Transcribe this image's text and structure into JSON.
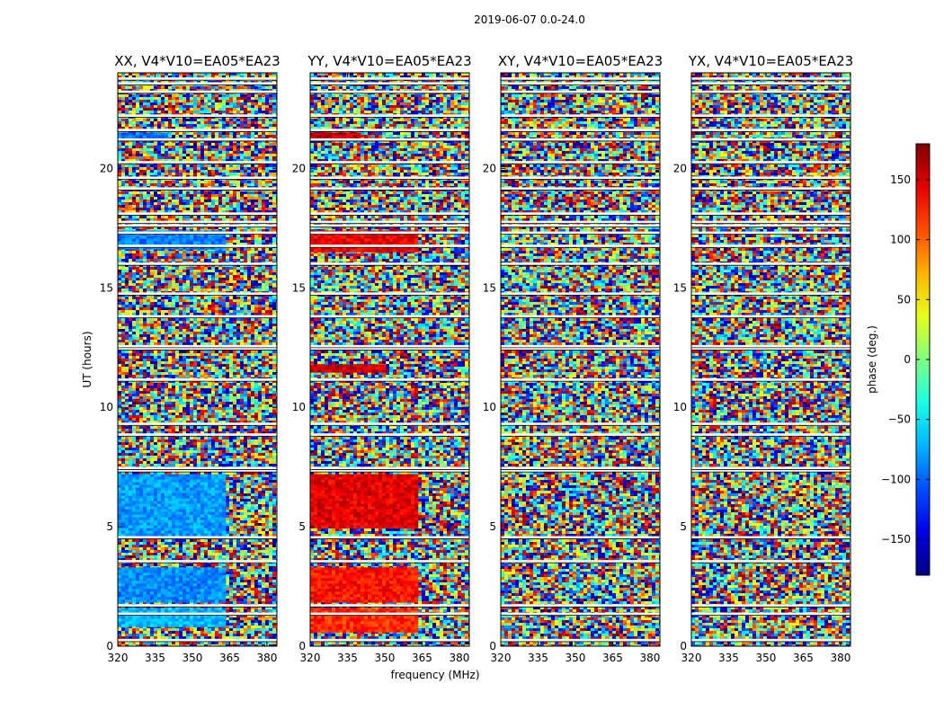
{
  "chart_data": {
    "type": "heatmap",
    "suptitle": "2019-06-07 0.0-24.0",
    "xlabel": "frequency (MHz)",
    "ylabel": "UT (hours)",
    "xlim": [
      320,
      384
    ],
    "ylim": [
      0,
      24
    ],
    "xticks": [
      320,
      335,
      350,
      365,
      380
    ],
    "yticks": [
      0,
      5,
      10,
      15,
      20
    ],
    "split_freq_mhz": 361,
    "panels": [
      {
        "title": "XX, V4*V10=EA05*EA23",
        "bands": [
          {
            "t0": 0.9,
            "t1": 1.6,
            "phase": -70,
            "f1": 362
          },
          {
            "t0": 1.9,
            "t1": 3.3,
            "phase": -85,
            "f1": 362
          },
          {
            "t0": 4.7,
            "t1": 7.2,
            "phase": -80,
            "f1": 362
          },
          {
            "t0": 16.7,
            "t1": 17.4,
            "phase": -90,
            "f1": 362
          },
          {
            "t0": 21.2,
            "t1": 21.5,
            "phase": -95,
            "f1": 340
          }
        ]
      },
      {
        "title": "YY, V4*V10=EA05*EA23",
        "bands": [
          {
            "t0": 0.6,
            "t1": 1.6,
            "phase": 120,
            "f1": 362
          },
          {
            "t0": 1.9,
            "t1": 3.3,
            "phase": 130,
            "f1": 362
          },
          {
            "t0": 5.0,
            "t1": 7.2,
            "phase": 145,
            "f1": 362
          },
          {
            "t0": 16.6,
            "t1": 17.4,
            "phase": 140,
            "f1": 362
          },
          {
            "t0": 11.5,
            "t1": 11.8,
            "phase": 150,
            "f1": 350
          },
          {
            "t0": 21.2,
            "t1": 21.5,
            "phase": 155,
            "f1": 340
          }
        ]
      },
      {
        "title": "XY, V4*V10=EA05*EA23",
        "bands": []
      },
      {
        "title": "YX, V4*V10=EA05*EA23",
        "bands": []
      }
    ],
    "flagged_hours": [
      0.25,
      1.35,
      1.7,
      3.55,
      4.55,
      7.35,
      7.45,
      8.85,
      9.3,
      11.15,
      12.45,
      12.55,
      13.8,
      14.75,
      16.0,
      16.75,
      17.3,
      17.6,
      17.75,
      18.1,
      19.15,
      19.6,
      20.25,
      21.2,
      21.6,
      22.2,
      23.2,
      23.55,
      23.75
    ],
    "colorbar": {
      "label": "phase (deg.)",
      "range": [
        -180,
        180
      ],
      "ticks": [
        -150,
        -100,
        -50,
        0,
        50,
        100,
        150
      ],
      "tick_labels": [
        "−150",
        "−100",
        "−50",
        "0",
        "50",
        "100",
        "150"
      ],
      "colormap": "jet"
    }
  }
}
